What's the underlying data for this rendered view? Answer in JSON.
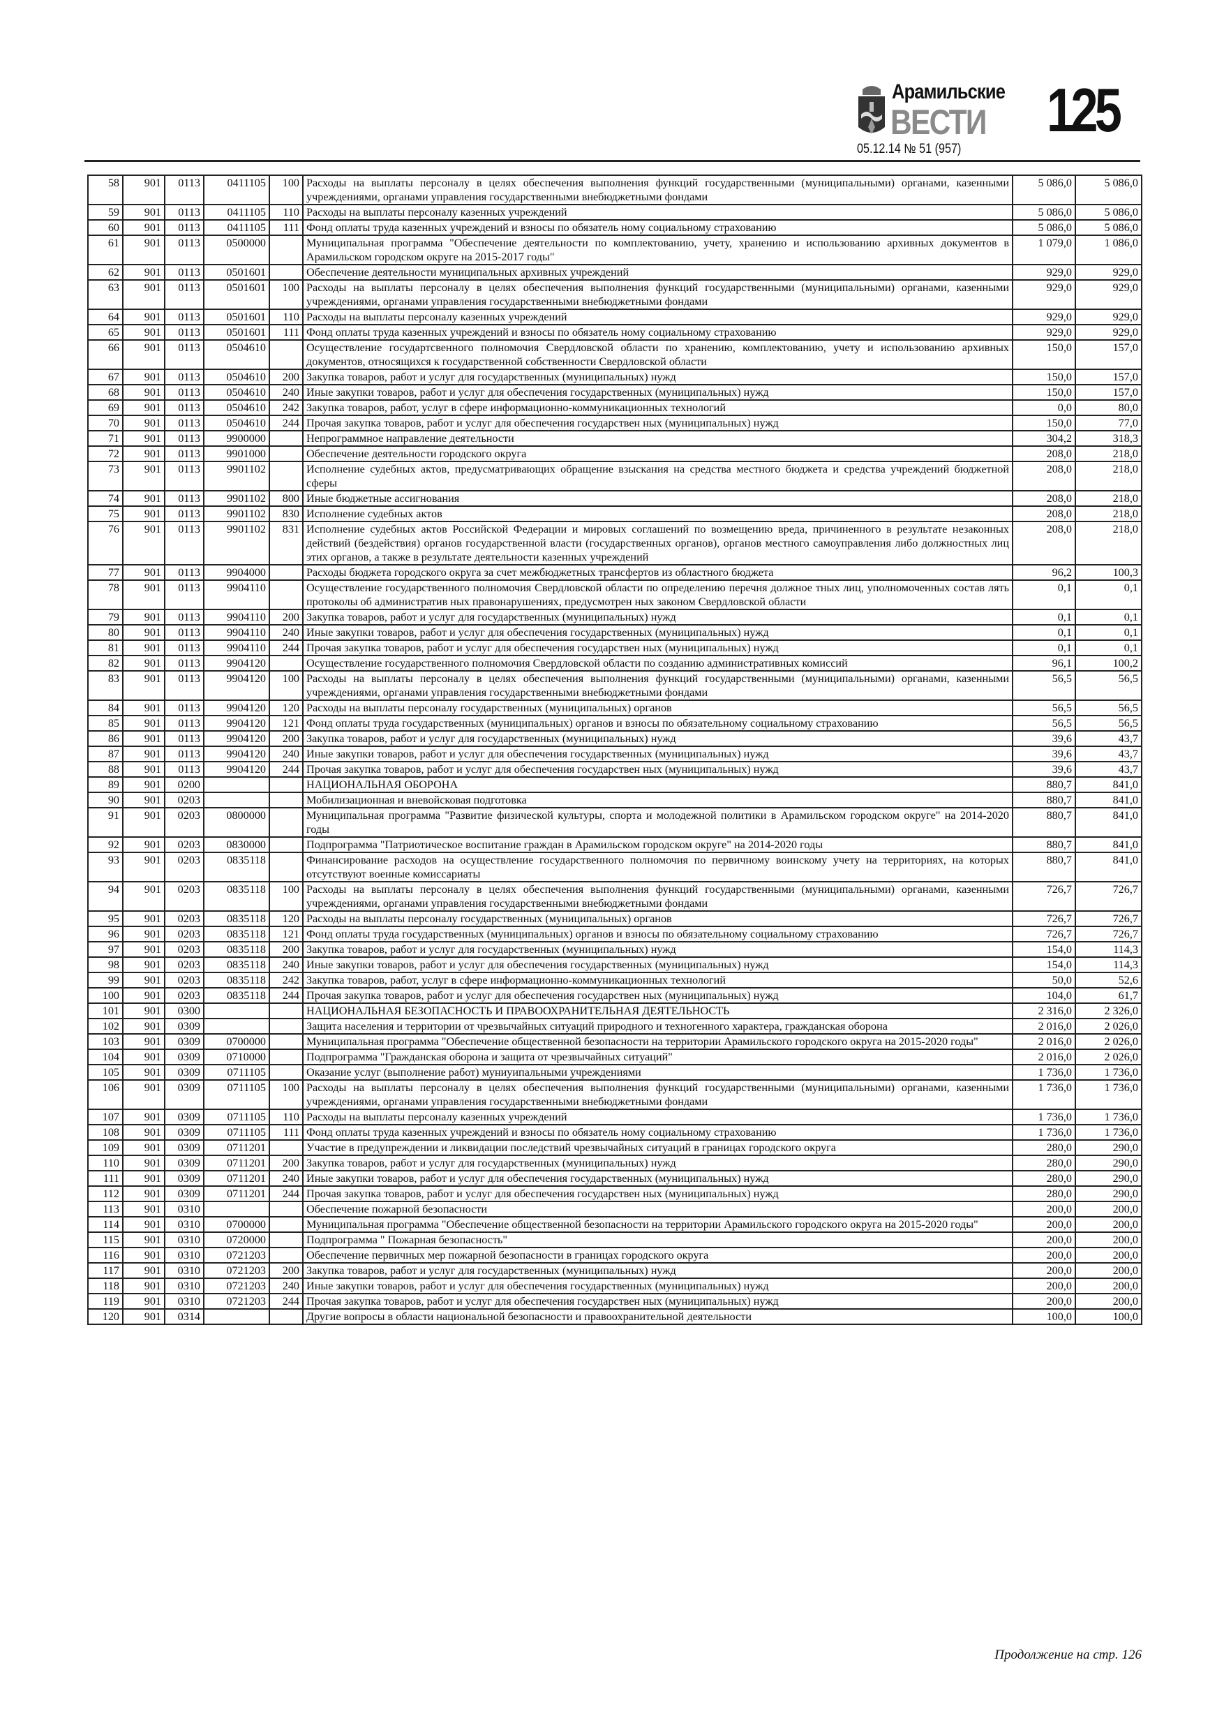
{
  "header": {
    "brand_top": "Арамильские",
    "brand_main": "ВЕСТИ",
    "page_number": "125",
    "issue": "05.12.14  № 51 (957)"
  },
  "table": {
    "rows": [
      [
        "58",
        "901",
        "0113",
        "0411105",
        "100",
        "Расходы на выплаты персоналу в целях обеспечения выполнения функций государственными (муниципальными) органами, казенными учреждениями, органами управления государственными внебюджетными фондами",
        "5 086,0",
        "5 086,0"
      ],
      [
        "59",
        "901",
        "0113",
        "0411105",
        "110",
        "Расходы на выплаты персоналу казенных учреждений",
        "5 086,0",
        "5 086,0"
      ],
      [
        "60",
        "901",
        "0113",
        "0411105",
        "111",
        "Фонд оплаты труда казенных учреждений и взносы по обязатель ному социальному страхованию",
        "5 086,0",
        "5 086,0"
      ],
      [
        "61",
        "901",
        "0113",
        "0500000",
        "",
        "Муниципальная программа \"Обеспечение деятельности по комплектованию, учету, хранению и использованию архивных документов в Арамильском городском округе на 2015-2017 годы\"",
        "1 079,0",
        "1 086,0"
      ],
      [
        "62",
        "901",
        "0113",
        "0501601",
        "",
        "Обеспечение деятельности муниципальных архивных учреждений",
        "929,0",
        "929,0"
      ],
      [
        "63",
        "901",
        "0113",
        "0501601",
        "100",
        "Расходы на выплаты персоналу в целях обеспечения выполнения функций государственными (муниципальными) органами, казенными учреждениями, органами управления государственными внебюджетными фондами",
        "929,0",
        "929,0"
      ],
      [
        "64",
        "901",
        "0113",
        "0501601",
        "110",
        "Расходы на выплаты персоналу казенных учреждений",
        "929,0",
        "929,0"
      ],
      [
        "65",
        "901",
        "0113",
        "0501601",
        "111",
        "Фонд оплаты труда казенных учреждений и взносы по обязатель ному социальному страхованию",
        "929,0",
        "929,0"
      ],
      [
        "66",
        "901",
        "0113",
        "0504610",
        "",
        "Осуществление государтсвенного полномочия Свердловской области по хранению, комплектованию, учету и использованию архивных документов, относящихся к государственной собственности Свердловской области",
        "150,0",
        "157,0"
      ],
      [
        "67",
        "901",
        "0113",
        "0504610",
        "200",
        "Закупка товаров, работ и услуг для государственных (муниципальных) нужд",
        "150,0",
        "157,0"
      ],
      [
        "68",
        "901",
        "0113",
        "0504610",
        "240",
        "Иные закупки товаров, работ и услуг для обеспечения государственных (муниципальных) нужд",
        "150,0",
        "157,0"
      ],
      [
        "69",
        "901",
        "0113",
        "0504610",
        "242",
        "Закупка товаров, работ, услуг в сфере информационно-коммуникационных технологий",
        "0,0",
        "80,0"
      ],
      [
        "70",
        "901",
        "0113",
        "0504610",
        "244",
        "Прочая закупка товаров, работ и услуг для обеспечения государствен ных  (муниципальных) нужд",
        "150,0",
        "77,0"
      ],
      [
        "71",
        "901",
        "0113",
        "9900000",
        "",
        "Непрограммное направление деятельности",
        "304,2",
        "318,3"
      ],
      [
        "72",
        "901",
        "0113",
        "9901000",
        "",
        "Обеспечение деятельности городского округа",
        "208,0",
        "218,0"
      ],
      [
        "73",
        "901",
        "0113",
        "9901102",
        "",
        "Исполнение судебных актов, предусматривающих обращение взыскания на средства местного бюджета и средства учреждений бюджетной сферы",
        "208,0",
        "218,0"
      ],
      [
        "74",
        "901",
        "0113",
        "9901102",
        "800",
        "Иные бюджетные ассигнования",
        "208,0",
        "218,0"
      ],
      [
        "75",
        "901",
        "0113",
        "9901102",
        "830",
        "Исполнение судебных актов",
        "208,0",
        "218,0"
      ],
      [
        "76",
        "901",
        "0113",
        "9901102",
        "831",
        "Исполнение судебных актов Российской Федерации и мировых соглашений по возмещению вреда, причиненного в результате незаконных действий (бездействия) органов государственной власти (государственных органов), органов местного самоуправления либо должностных лиц этих органов, а также в результате деятельности казенных учреждений",
        "208,0",
        "218,0"
      ],
      [
        "77",
        "901",
        "0113",
        "9904000",
        "",
        "Расходы бюджета городского округа за счет межбюджетных трансфертов из областного бюджета",
        "96,2",
        "100,3"
      ],
      [
        "78",
        "901",
        "0113",
        "9904110",
        "",
        "Осуществление государственного полномочия Свердловской области по определению перечня должное тных лиц, уполномоченных состав лять протоколы об административ ных правонарушениях, предусмотрен ных законом Свердловской области",
        "0,1",
        "0,1"
      ],
      [
        "79",
        "901",
        "0113",
        "9904110",
        "200",
        "Закупка товаров, работ и услуг для государственных (муниципальных) нужд",
        "0,1",
        "0,1"
      ],
      [
        "80",
        "901",
        "0113",
        "9904110",
        "240",
        "Иные закупки товаров, работ и услуг для обеспечения государственных (муниципальных) нужд",
        "0,1",
        "0,1"
      ],
      [
        "81",
        "901",
        "0113",
        "9904110",
        "244",
        "Прочая закупка товаров, работ и услуг для обеспечения государствен ных  (муниципальных) нужд",
        "0,1",
        "0,1"
      ],
      [
        "82",
        "901",
        "0113",
        "9904120",
        "",
        "Осуществление государственного полномочия Свердловской области по созданию административных комиссий",
        "96,1",
        "100,2"
      ],
      [
        "83",
        "901",
        "0113",
        "9904120",
        "100",
        "Расходы на выплаты персоналу в целях обеспечения выполнения функций государственными (муниципальными) органами, казенными учреждениями, органами управления государственными внебюджетными фондами",
        "56,5",
        "56,5"
      ],
      [
        "84",
        "901",
        "0113",
        "9904120",
        "120",
        "Расходы на выплаты персоналу государственных (муниципальных) органов",
        "56,5",
        "56,5"
      ],
      [
        "85",
        "901",
        "0113",
        "9904120",
        "121",
        "Фонд оплаты труда государственных (муниципальных) органов и  взносы по обязательному социальному страхованию",
        "56,5",
        "56,5"
      ],
      [
        "86",
        "901",
        "0113",
        "9904120",
        "200",
        "Закупка товаров, работ и услуг для государственных (муниципальных) нужд",
        "39,6",
        "43,7"
      ],
      [
        "87",
        "901",
        "0113",
        "9904120",
        "240",
        "Иные закупки товаров, работ и услуг для обеспечения государственных (муниципальных) нужд",
        "39,6",
        "43,7"
      ],
      [
        "88",
        "901",
        "0113",
        "9904120",
        "244",
        "Прочая закупка товаров, работ и услуг для обеспечения государствен ных  (муниципальных) нужд",
        "39,6",
        "43,7"
      ],
      [
        "89",
        "901",
        "0200",
        "",
        "",
        "НАЦИОНАЛЬНАЯ ОБОРОНА",
        "880,7",
        "841,0"
      ],
      [
        "90",
        "901",
        "0203",
        "",
        "",
        "Мобилизационная и вневойсковая подготовка",
        "880,7",
        "841,0"
      ],
      [
        "91",
        "901",
        "0203",
        "0800000",
        "",
        "Муниципальная программа \"Развитие физической культуры, спорта и молодежной политики в Арамильском городском округе\" на 2014-2020 годы",
        "880,7",
        "841,0"
      ],
      [
        "92",
        "901",
        "0203",
        "0830000",
        "",
        "Подпрограмма \"Патриотическое воспитание граждан в Арамильском городском округе\" на 2014-2020 годы",
        "880,7",
        "841,0"
      ],
      [
        "93",
        "901",
        "0203",
        "0835118",
        "",
        "Финансирование расходов на осуществление государственного полномочия по первичному воинскому учету на территориях, на которых отсутствуют военные комиссариаты",
        "880,7",
        "841,0"
      ],
      [
        "94",
        "901",
        "0203",
        "0835118",
        "100",
        "Расходы на выплаты персоналу в целях обеспечения выполнения функций государственными (муниципальными) органами, казенными учреждениями, органами управления государственными внебюджетными фондами",
        "726,7",
        "726,7"
      ],
      [
        "95",
        "901",
        "0203",
        "0835118",
        "120",
        "Расходы на выплаты персоналу государственных (муниципальных) органов",
        "726,7",
        "726,7"
      ],
      [
        "96",
        "901",
        "0203",
        "0835118",
        "121",
        "Фонд оплаты труда государственных (муниципальных) органов и  взносы по обязательному социальному страхованию",
        "726,7",
        "726,7"
      ],
      [
        "97",
        "901",
        "0203",
        "0835118",
        "200",
        "Закупка товаров, работ и услуг для государственных (муниципальных) нужд",
        "154,0",
        "114,3"
      ],
      [
        "98",
        "901",
        "0203",
        "0835118",
        "240",
        "Иные закупки товаров, работ и услуг для обеспечения государственных (муниципальных) нужд",
        "154,0",
        "114,3"
      ],
      [
        "99",
        "901",
        "0203",
        "0835118",
        "242",
        "Закупка товаров, работ, услуг в сфере информационно-коммуникационных технологий",
        "50,0",
        "52,6"
      ],
      [
        "100",
        "901",
        "0203",
        "0835118",
        "244",
        "Прочая закупка товаров, работ и услуг для обеспечения государствен ных  (муниципальных) нужд",
        "104,0",
        "61,7"
      ],
      [
        "101",
        "901",
        "0300",
        "",
        "",
        "НАЦИОНАЛЬНАЯ БЕЗОПАСНОСТЬ И ПРАВООХРАНИТЕЛЬНАЯ ДЕЯТЕЛЬНОСТЬ",
        "2 316,0",
        "2 326,0"
      ],
      [
        "102",
        "901",
        "0309",
        "",
        "",
        "Защита населения и территории от чрезвычайных ситуаций природного и техногенного характера, гражданская оборона",
        "2 016,0",
        "2 026,0"
      ],
      [
        "103",
        "901",
        "0309",
        "0700000",
        "",
        "Муниципальная программа \"Обеспечение общественной безопасности на территории Арамильского городского округа на 2015-2020 годы\"",
        "2 016,0",
        "2 026,0"
      ],
      [
        "104",
        "901",
        "0309",
        "0710000",
        "",
        "Подпрограмма \"Гражданская оборона и защита от чрезвычайных ситуаций\"",
        "2 016,0",
        "2 026,0"
      ],
      [
        "105",
        "901",
        "0309",
        "0711105",
        "",
        "Оказание услуг (выполнение работ) муниуипальными учреждениями",
        "1 736,0",
        "1 736,0"
      ],
      [
        "106",
        "901",
        "0309",
        "0711105",
        "100",
        "Расходы на выплаты персоналу в целях обеспечения выполнения функций государственными (муниципальными) органами, казенными учреждениями, органами управления государственными внебюджетными фондами",
        "1 736,0",
        "1 736,0"
      ],
      [
        "107",
        "901",
        "0309",
        "0711105",
        "110",
        "Расходы на выплаты персоналу казенных учреждений",
        "1 736,0",
        "1 736,0"
      ],
      [
        "108",
        "901",
        "0309",
        "0711105",
        "111",
        "Фонд оплаты труда казенных учреждений и взносы по обязатель ному социальному страхованию",
        "1 736,0",
        "1 736,0"
      ],
      [
        "109",
        "901",
        "0309",
        "0711201",
        "",
        "Участие в предупреждении и ликвидации последствий чрезвычайных ситуаций в границах городского округа",
        "280,0",
        "290,0"
      ],
      [
        "110",
        "901",
        "0309",
        "0711201",
        "200",
        "Закупка товаров, работ и услуг для государственных (муниципальных) нужд",
        "280,0",
        "290,0"
      ],
      [
        "111",
        "901",
        "0309",
        "0711201",
        "240",
        "Иные закупки товаров, работ и услуг для обеспечения государственных (муниципальных) нужд",
        "280,0",
        "290,0"
      ],
      [
        "112",
        "901",
        "0309",
        "0711201",
        "244",
        "Прочая закупка товаров, работ и услуг для обеспечения государствен ных  (муниципальных) нужд",
        "280,0",
        "290,0"
      ],
      [
        "113",
        "901",
        "0310",
        "",
        "",
        "Обеспечение пожарной безопасности",
        "200,0",
        "200,0"
      ],
      [
        "114",
        "901",
        "0310",
        "0700000",
        "",
        "Муниципальная программа \"Обеспечение общественной безопасности на территории Арамильского городского округа на 2015-2020 годы\"",
        "200,0",
        "200,0"
      ],
      [
        "115",
        "901",
        "0310",
        "0720000",
        "",
        "Подпрограмма \" Пожарная безопасность\"",
        "200,0",
        "200,0"
      ],
      [
        "116",
        "901",
        "0310",
        "0721203",
        "",
        "Обеспечение первичных мер пожарной безопасности в границах городского округа",
        "200,0",
        "200,0"
      ],
      [
        "117",
        "901",
        "0310",
        "0721203",
        "200",
        "Закупка товаров, работ и услуг для государственных (муниципальных) нужд",
        "200,0",
        "200,0"
      ],
      [
        "118",
        "901",
        "0310",
        "0721203",
        "240",
        "Иные закупки товаров, работ и услуг для обеспечения государственных (муниципальных) нужд",
        "200,0",
        "200,0"
      ],
      [
        "119",
        "901",
        "0310",
        "0721203",
        "244",
        "Прочая закупка товаров, работ и услуг для обеспечения государствен ных  (муниципальных) нужд",
        "200,0",
        "200,0"
      ],
      [
        "120",
        "901",
        "0314",
        "",
        "",
        "Другие вопросы в области национальной безопасности и правоохранительной деятельности",
        "100,0",
        "100,0"
      ]
    ]
  },
  "footer": {
    "continuation": "Продолжение на стр. 126"
  }
}
